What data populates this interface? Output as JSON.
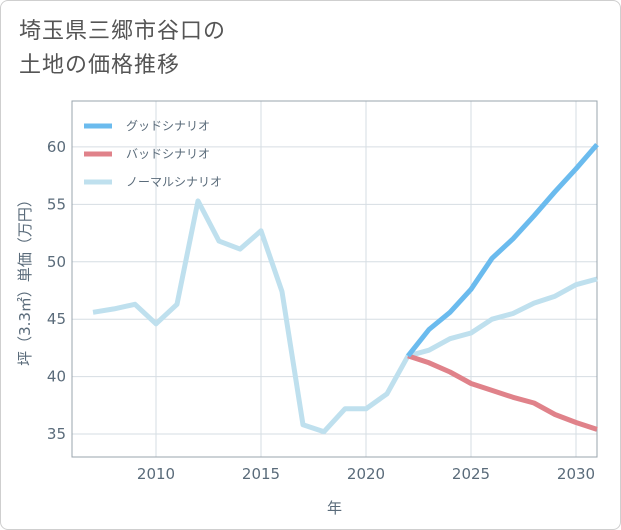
{
  "title_lines": [
    "埼玉県三郷市谷口の",
    "土地の価格推移"
  ],
  "chart_data": {
    "type": "line",
    "xlabel": "年",
    "ylabel": "坪（3.3㎡）単価（万円）",
    "xlim": [
      2006,
      2031
    ],
    "ylim": [
      33,
      64
    ],
    "xticks": [
      2010,
      2015,
      2020,
      2025,
      2030
    ],
    "yticks": [
      35,
      40,
      45,
      50,
      55,
      60
    ],
    "grid": true,
    "legend_position": "top-left",
    "series": [
      {
        "name": "グッドシナリオ",
        "color": "#6bbbee",
        "x": [
          2022,
          2023,
          2024,
          2025,
          2026,
          2027,
          2028,
          2029,
          2030,
          2031
        ],
        "values": [
          41.8,
          44.1,
          45.6,
          47.6,
          50.3,
          52.0,
          54.0,
          56.1,
          58.1,
          60.2
        ]
      },
      {
        "name": "バッドシナリオ",
        "color": "#e0828a",
        "x": [
          2022,
          2023,
          2024,
          2025,
          2026,
          2027,
          2028,
          2029,
          2030,
          2031
        ],
        "values": [
          41.8,
          41.2,
          40.4,
          39.4,
          38.8,
          38.2,
          37.7,
          36.7,
          36.0,
          35.4
        ]
      },
      {
        "name": "ノーマルシナリオ",
        "color": "#bfe0ee",
        "x": [
          2007,
          2008,
          2009,
          2010,
          2011,
          2012,
          2013,
          2014,
          2015,
          2016,
          2017,
          2018,
          2019,
          2020,
          2021,
          2022,
          2023,
          2024,
          2025,
          2026,
          2027,
          2028,
          2029,
          2030,
          2031
        ],
        "values": [
          45.6,
          45.9,
          46.3,
          44.6,
          46.3,
          55.3,
          51.8,
          51.1,
          52.7,
          47.4,
          35.8,
          35.2,
          37.2,
          37.2,
          38.5,
          41.8,
          42.3,
          43.3,
          43.8,
          45.0,
          45.5,
          46.4,
          47.0,
          48.0,
          48.5
        ]
      }
    ]
  }
}
